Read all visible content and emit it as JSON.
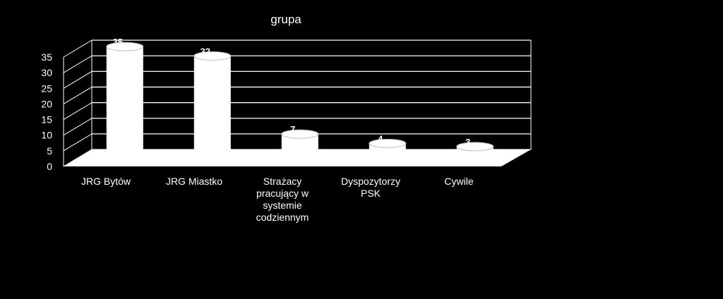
{
  "chart_data": {
    "type": "bar",
    "title": "grupa",
    "categories": [
      [
        "JRG Bytów"
      ],
      [
        "JRG Miastko"
      ],
      [
        "Strażacy",
        "pracujący w",
        "systemie",
        "codziennym"
      ],
      [
        "Dyspozytorzy",
        "PSK"
      ],
      [
        "Cywile"
      ]
    ],
    "values": [
      35,
      32,
      7,
      4,
      3
    ],
    "data_labels": [
      "35",
      "32",
      "7",
      "4",
      "3"
    ],
    "ylim": [
      0,
      35
    ],
    "yticks": [
      "0",
      "5",
      "10",
      "15",
      "20",
      "25",
      "30",
      "35"
    ],
    "grid": true,
    "style": "3d-cylinder",
    "colors": {
      "background": "#000000",
      "bars": "#ffffff",
      "grid": "#ffffff",
      "text": "#ffffff"
    }
  }
}
